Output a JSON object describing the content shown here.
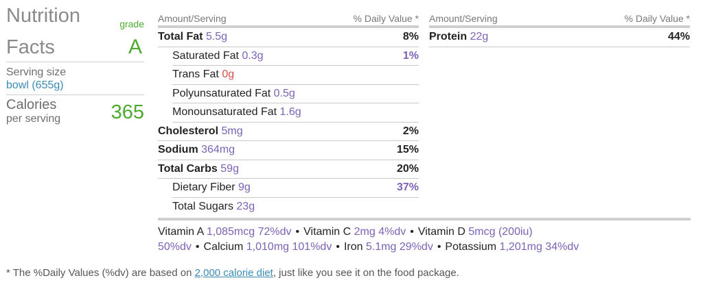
{
  "header": {
    "title_line1": "Nutrition",
    "title_line2": "Facts",
    "grade_label": "grade",
    "grade_value": "A"
  },
  "serving": {
    "label": "Serving size",
    "value": "bowl (655g)"
  },
  "calories": {
    "label": "Calories",
    "sub_label": "per serving",
    "value": "365"
  },
  "column_headers": {
    "amount": "Amount/Serving",
    "daily_value": "% Daily Value *"
  },
  "nutrients_left": [
    {
      "name": "Total Fat",
      "amount": "5.5g",
      "dv": "8%",
      "bold": true
    },
    {
      "name": "Saturated Fat",
      "amount": "0.3g",
      "dv": "1%",
      "bold": false
    },
    {
      "name": "Trans Fat",
      "amount": "0g",
      "dv": "",
      "bold": false
    },
    {
      "name": "Polyunsaturated Fat",
      "amount": "0.5g",
      "dv": "",
      "bold": false
    },
    {
      "name": "Monounsaturated Fat",
      "amount": "1.6g",
      "dv": "",
      "bold": false
    },
    {
      "name": "Cholesterol",
      "amount": "5mg",
      "dv": "2%",
      "bold": true
    },
    {
      "name": "Sodium",
      "amount": "364mg",
      "dv": "15%",
      "bold": true
    },
    {
      "name": "Total Carbs",
      "amount": "59g",
      "dv": "20%",
      "bold": true
    },
    {
      "name": "Dietary Fiber",
      "amount": "9g",
      "dv": "37%",
      "bold": false
    },
    {
      "name": "Total Sugars",
      "amount": "23g",
      "dv": "",
      "bold": false
    }
  ],
  "nutrients_right": [
    {
      "name": "Protein",
      "amount": "22g",
      "dv": "44%",
      "bold": true
    }
  ],
  "vitamins": [
    {
      "name": "Vitamin A",
      "amount": "1,085mcg",
      "dv": "72%dv"
    },
    {
      "name": "Vitamin C",
      "amount": "2mg",
      "dv": "4%dv"
    },
    {
      "name": "Vitamin D",
      "amount": "5mcg (200iu)",
      "dv": "50%dv"
    },
    {
      "name": "Calcium",
      "amount": "1,010mg",
      "dv": "101%dv"
    },
    {
      "name": "Iron",
      "amount": "5.1mg",
      "dv": "29%dv"
    },
    {
      "name": "Potassium",
      "amount": "1,201mg",
      "dv": "34%dv"
    }
  ],
  "separator": "•",
  "footer": {
    "prefix": "* The %Daily Values (%dv) are based on ",
    "link_text": "2,000 calorie diet",
    "suffix": ", just like you see it on the food package."
  },
  "colors": {
    "accent_green": "#4caa2e",
    "amount_purple": "#7b62b5",
    "trans_red": "#d94d4d",
    "link_blue": "#3a8ab4"
  }
}
